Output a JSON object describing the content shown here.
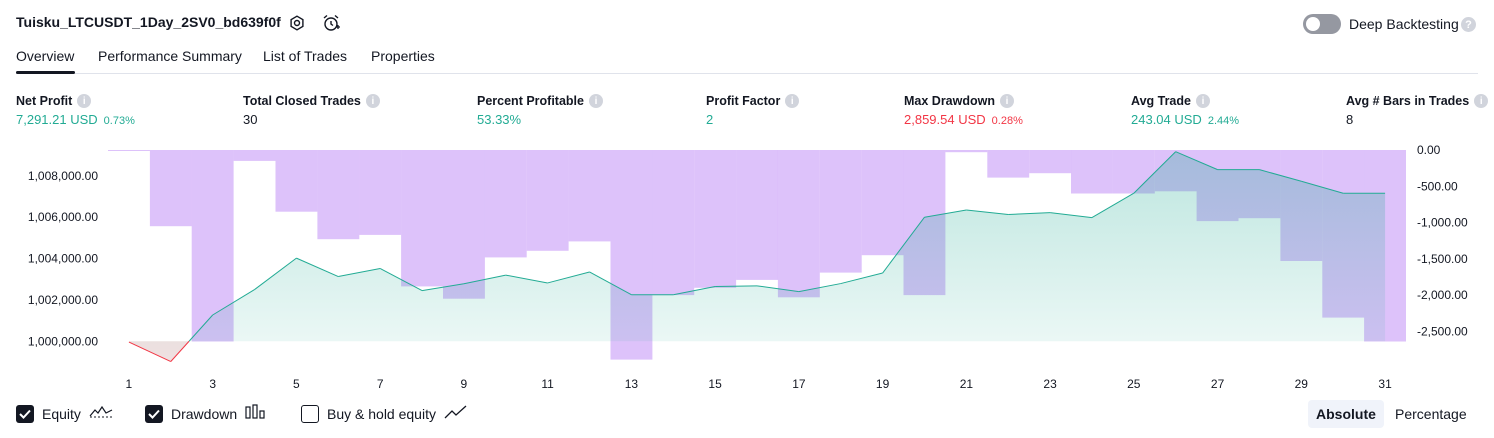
{
  "header": {
    "strategy_title": "Tuisku_LTCUSDT_1Day_2SV0_bd639f0f",
    "deep_backtesting_label": "Deep Backtesting",
    "deep_backtesting_on": false,
    "help_glyph": "?"
  },
  "tabs": [
    {
      "label": "Overview",
      "active": true
    },
    {
      "label": "Performance Summary",
      "active": false
    },
    {
      "label": "List of Trades",
      "active": false
    },
    {
      "label": "Properties",
      "active": false
    }
  ],
  "metrics": [
    {
      "label": "Net Profit",
      "value": "7,291.21 USD",
      "pct": "0.73%",
      "color": "#22ab94"
    },
    {
      "label": "Total Closed Trades",
      "value": "30",
      "pct": "",
      "color": "#131722"
    },
    {
      "label": "Percent Profitable",
      "value": "53.33%",
      "pct": "",
      "color": "#22ab94"
    },
    {
      "label": "Profit Factor",
      "value": "2",
      "pct": "",
      "color": "#22ab94"
    },
    {
      "label": "Max Drawdown",
      "value": "2,859.54 USD",
      "pct": "0.28%",
      "color": "#f23645"
    },
    {
      "label": "Avg Trade",
      "value": "243.04 USD",
      "pct": "2.44%",
      "color": "#22ab94"
    },
    {
      "label": "Avg # Bars in Trades",
      "value": "8",
      "pct": "",
      "color": "#131722"
    }
  ],
  "chart_data": {
    "type": "area",
    "x_ticks": [
      "1",
      "3",
      "5",
      "7",
      "9",
      "11",
      "13",
      "15",
      "17",
      "19",
      "21",
      "23",
      "25",
      "27",
      "29",
      "31"
    ],
    "left_axis": {
      "ticks": [
        "1,000,000.00",
        "1,002,000.00",
        "1,004,000.00",
        "1,006,000.00",
        "1,008,000.00"
      ],
      "tick_values": [
        1000000,
        1002000,
        1004000,
        1006000,
        1008000
      ],
      "range": [
        998900,
        1009250
      ]
    },
    "right_axis": {
      "ticks": [
        "0.00",
        "-500.00",
        "-1,000.00",
        "-1,500.00",
        "-2,000.00",
        "-2,500.00"
      ],
      "tick_values": [
        0,
        -500,
        -1000,
        -1500,
        -2000,
        -2500
      ],
      "range": [
        -2950,
        0
      ]
    },
    "series": [
      {
        "name": "Equity",
        "type": "line",
        "baseline": 1000000,
        "line_color": "#22ab94",
        "below_color": "#f23645",
        "x": [
          1,
          2,
          3,
          4,
          5,
          6,
          7,
          8,
          9,
          10,
          11,
          12,
          13,
          14,
          15,
          16,
          17,
          18,
          19,
          20,
          21,
          22,
          23,
          24,
          25,
          26,
          27,
          28,
          29,
          30,
          31
        ],
        "values": [
          999960,
          999020,
          1001270,
          1002500,
          1004020,
          1003130,
          1003520,
          1002450,
          1002780,
          1003200,
          1002820,
          1003350,
          1002250,
          1002250,
          1002650,
          1002680,
          1002400,
          1002790,
          1003300,
          1006000,
          1006350,
          1006130,
          1006220,
          1005980,
          1007160,
          1009170,
          1008300,
          1008300,
          1007740,
          1007160,
          1007160
        ]
      },
      {
        "name": "Drawdown",
        "type": "bar",
        "color": "#c89cf7",
        "x": [
          1,
          2,
          3,
          4,
          5,
          6,
          7,
          8,
          9,
          10,
          11,
          12,
          13,
          14,
          15,
          16,
          17,
          18,
          19,
          20,
          21,
          22,
          23,
          24,
          25,
          26,
          27,
          28,
          29,
          30,
          31
        ],
        "values": [
          -10,
          -1050,
          -2640,
          -150,
          -850,
          -1230,
          -1170,
          -1880,
          -2050,
          -1480,
          -1390,
          -1260,
          -2890,
          -2000,
          -1900,
          -1790,
          -2030,
          -1690,
          -1450,
          -2000,
          -30,
          -380,
          -320,
          -600,
          -600,
          -570,
          -980,
          -940,
          -1530,
          -2310,
          -2640
        ]
      }
    ],
    "grid": false
  },
  "footer": {
    "checkboxes": [
      {
        "label": "Equity",
        "checked": true,
        "icon": "equity-line-icon"
      },
      {
        "label": "Drawdown",
        "checked": true,
        "icon": "drawdown-bars-icon"
      },
      {
        "label": "Buy & hold equity",
        "checked": false,
        "icon": "buy-hold-line-icon"
      }
    ],
    "mode_buttons": [
      {
        "label": "Absolute",
        "active": true
      },
      {
        "label": "Percentage",
        "active": false
      }
    ]
  }
}
